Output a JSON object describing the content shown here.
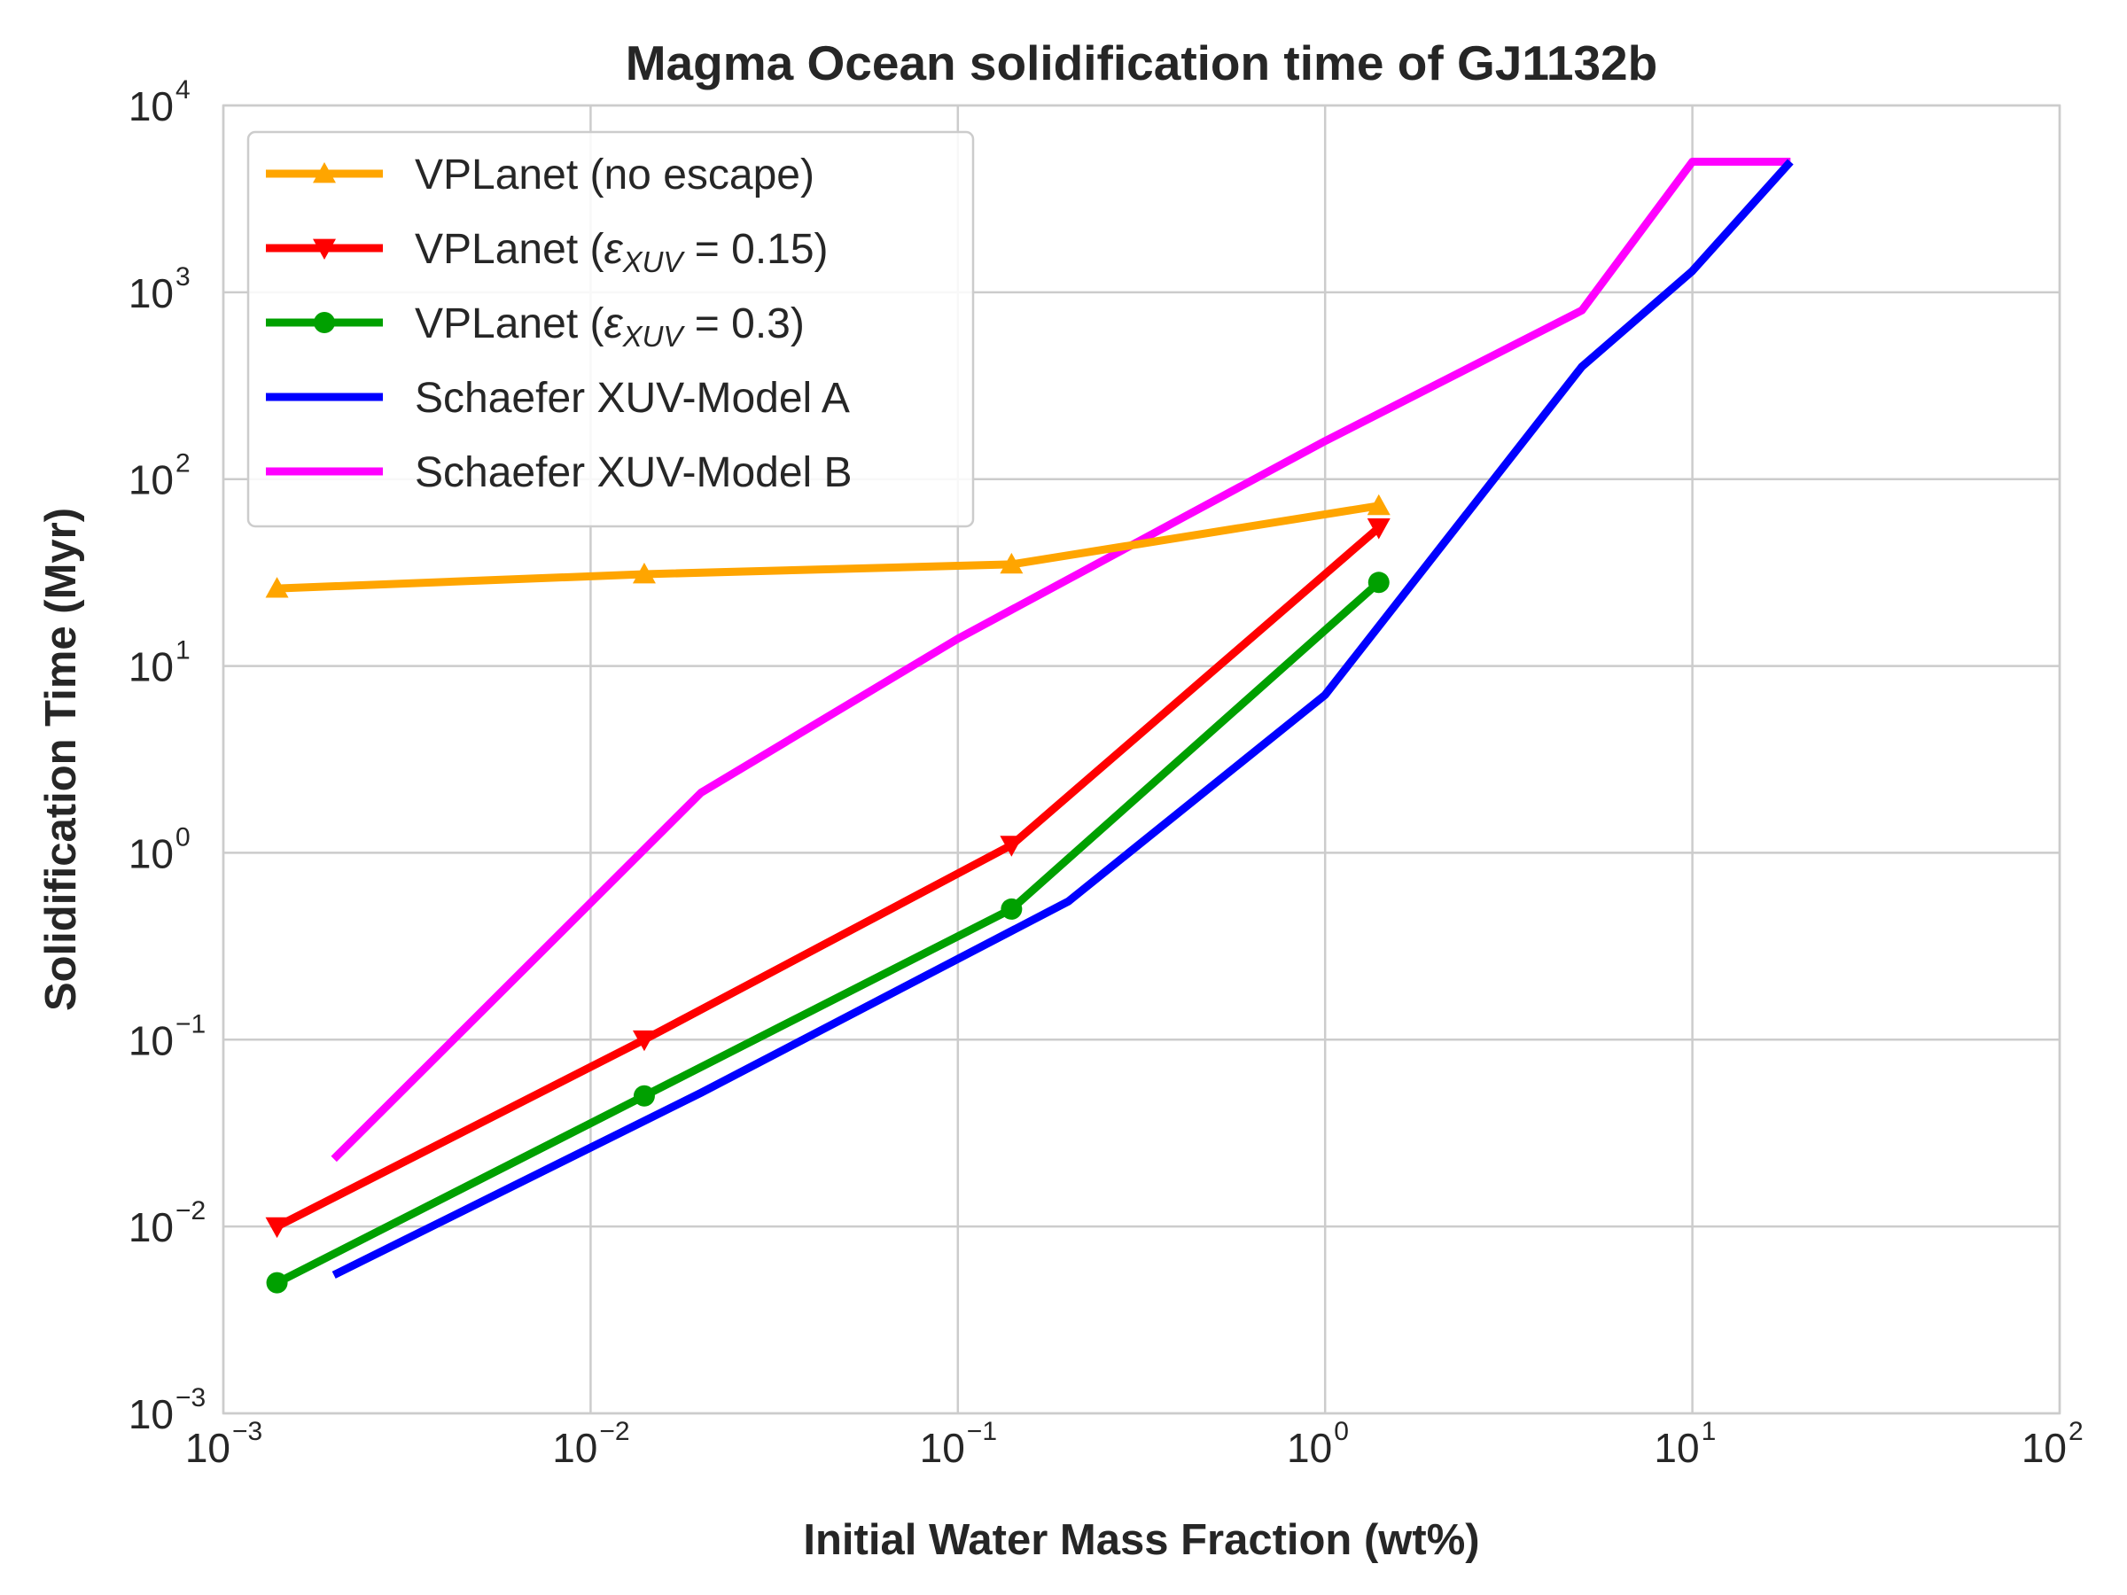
{
  "chart_data": {
    "type": "line",
    "title": "Magma Ocean solidification time of GJ1132b",
    "xlabel": "Initial Water Mass Fraction (wt%)",
    "ylabel": "Solidification Time (Myr)",
    "xscale": "log",
    "yscale": "log",
    "xlim": [
      0.001,
      100
    ],
    "ylim": [
      0.001,
      10000
    ],
    "x_ticks": [
      {
        "base": "10",
        "exp": "−3",
        "value": 0.001
      },
      {
        "base": "10",
        "exp": "−2",
        "value": 0.01
      },
      {
        "base": "10",
        "exp": "−1",
        "value": 0.1
      },
      {
        "base": "10",
        "exp": "0",
        "value": 1
      },
      {
        "base": "10",
        "exp": "1",
        "value": 10
      },
      {
        "base": "10",
        "exp": "2",
        "value": 100
      }
    ],
    "y_ticks": [
      {
        "base": "10",
        "exp": "−3",
        "value": 0.001
      },
      {
        "base": "10",
        "exp": "−2",
        "value": 0.01
      },
      {
        "base": "10",
        "exp": "−1",
        "value": 0.1
      },
      {
        "base": "10",
        "exp": "0",
        "value": 1
      },
      {
        "base": "10",
        "exp": "1",
        "value": 10
      },
      {
        "base": "10",
        "exp": "2",
        "value": 100
      },
      {
        "base": "10",
        "exp": "3",
        "value": 1000
      },
      {
        "base": "10",
        "exp": "4",
        "value": 10000
      }
    ],
    "grid": true,
    "legend_position": "top-left",
    "series": [
      {
        "name": "VPLanet (no escape)",
        "color": "#ffa500",
        "marker": "triangle-up",
        "x": [
          0.0014,
          0.014,
          0.14,
          1.4
        ],
        "y": [
          26,
          31,
          35,
          72
        ]
      },
      {
        "name": "VPLanet (ε_XUV = 0.15)",
        "name_parts": {
          "prefix": "VPLanet (",
          "symbol": "ε",
          "subscript": "XUV",
          "suffix": " = 0.15)"
        },
        "color": "#ff0000",
        "marker": "triangle-down",
        "x": [
          0.0014,
          0.014,
          0.14,
          1.4
        ],
        "y": [
          0.01,
          0.1,
          1.1,
          55
        ]
      },
      {
        "name": "VPLanet (ε_XUV = 0.3)",
        "name_parts": {
          "prefix": "VPLanet (",
          "symbol": "ε",
          "subscript": "XUV",
          "suffix": " = 0.3)"
        },
        "color": "#00a000",
        "marker": "circle",
        "x": [
          0.0014,
          0.014,
          0.14,
          1.4
        ],
        "y": [
          0.005,
          0.05,
          0.5,
          28
        ]
      },
      {
        "name": "Schaefer XUV-Model A",
        "color": "#0000ff",
        "marker": "none",
        "x": [
          0.002,
          0.02,
          0.2,
          1,
          5,
          10,
          18.5
        ],
        "y": [
          0.0055,
          0.052,
          0.55,
          7,
          400,
          1300,
          5000
        ]
      },
      {
        "name": "Schaefer XUV-Model B",
        "color": "#ff00ff",
        "marker": "none",
        "x": [
          0.002,
          0.02,
          0.1,
          1,
          5,
          10,
          18.5
        ],
        "y": [
          0.023,
          2.1,
          14,
          160,
          800,
          5000,
          5000
        ]
      }
    ]
  }
}
